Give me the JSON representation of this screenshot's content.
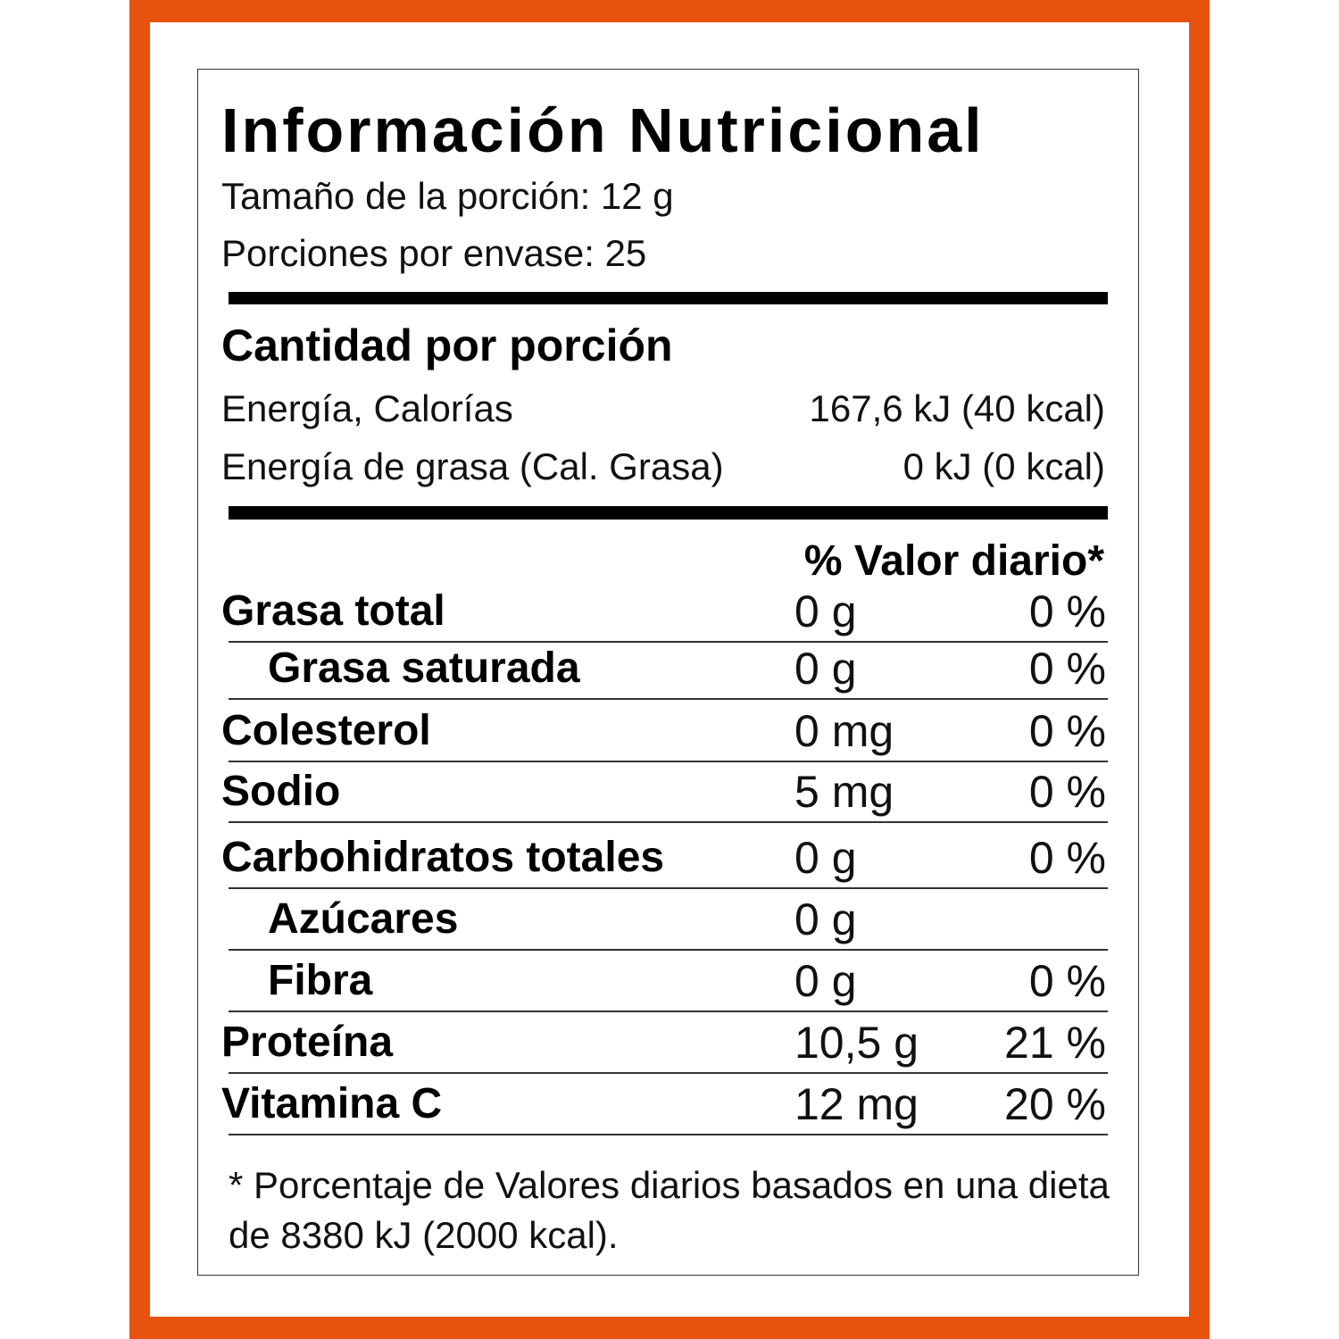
{
  "colors": {
    "frame": "#E8520F",
    "text": "#111111"
  },
  "title": "Información Nutricional",
  "serving_size": "Tamaño de la porción: 12 g",
  "servings_per_container": "Porciones por envase: 25",
  "amount_per_serving": "Cantidad por porción",
  "energy": [
    {
      "label": "Energía, Calorías",
      "value": "167,6 kJ (40 kcal)"
    },
    {
      "label": "Energía de grasa (Cal. Grasa)",
      "value": "0 kJ (0 kcal)"
    }
  ],
  "daily_value_header": "% Valor diario*",
  "nutrients": [
    {
      "name": "Grasa total",
      "amount": "0 g",
      "dv": "0 %"
    },
    {
      "name": "Grasa saturada",
      "amount": "0 g",
      "dv": "0 %"
    },
    {
      "name": "Colesterol",
      "amount": "0 mg",
      "dv": "0 %"
    },
    {
      "name": "Sodio",
      "amount": "5 mg",
      "dv": "0 %"
    },
    {
      "name": "Carbohidratos totales",
      "amount": "0 g",
      "dv": "0 %"
    },
    {
      "name": "Azúcares",
      "amount": "0 g",
      "dv": ""
    },
    {
      "name": "Fibra",
      "amount": "0 g",
      "dv": "0 %"
    },
    {
      "name": "Proteína",
      "amount": "10,5 g",
      "dv": "21 %"
    },
    {
      "name": "Vitamina C",
      "amount": "12 mg",
      "dv": "20 %"
    }
  ],
  "footnote": "* Porcentaje de Valores diarios basados en una dieta de 8380 kJ (2000  kcal)."
}
